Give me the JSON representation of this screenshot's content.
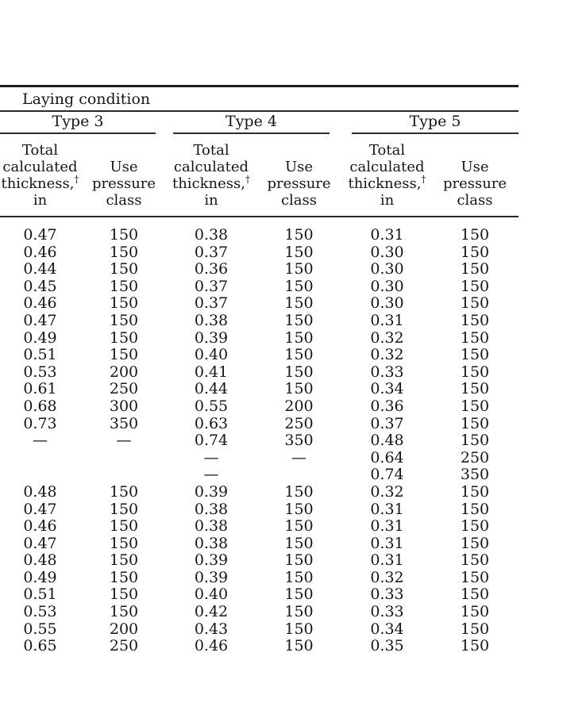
{
  "colors": {
    "background": "#ffffff",
    "text": "#161616",
    "rule": "#272727"
  },
  "table": {
    "laying_condition_label": "Laying condition",
    "types": [
      {
        "label": "Type 3"
      },
      {
        "label": "Type 4"
      },
      {
        "label": "Type 5"
      }
    ],
    "col_headers": {
      "thickness_line1": "Total",
      "thickness_line2": "calculated",
      "thickness_line3": "thickness,",
      "thickness_dagger": "†",
      "thickness_line4": "in",
      "pressure_line1": "Use",
      "pressure_line2": "pressure",
      "pressure_line3": "class"
    },
    "rows": [
      [
        "0.47",
        "150",
        "0.38",
        "150",
        "0.31",
        "150"
      ],
      [
        "0.46",
        "150",
        "0.37",
        "150",
        "0.30",
        "150"
      ],
      [
        "0.44",
        "150",
        "0.36",
        "150",
        "0.30",
        "150"
      ],
      [
        "0.45",
        "150",
        "0.37",
        "150",
        "0.30",
        "150"
      ],
      [
        "0.46",
        "150",
        "0.37",
        "150",
        "0.30",
        "150"
      ],
      [
        "0.47",
        "150",
        "0.38",
        "150",
        "0.31",
        "150"
      ],
      [
        "0.49",
        "150",
        "0.39",
        "150",
        "0.32",
        "150"
      ],
      [
        "0.51",
        "150",
        "0.40",
        "150",
        "0.32",
        "150"
      ],
      [
        "0.53",
        "200",
        "0.41",
        "150",
        "0.33",
        "150"
      ],
      [
        "0.61",
        "250",
        "0.44",
        "150",
        "0.34",
        "150"
      ],
      [
        "0.68",
        "300",
        "0.55",
        "200",
        "0.36",
        "150"
      ],
      [
        "0.73",
        "350",
        "0.63",
        "250",
        "0.37",
        "150"
      ],
      [
        "—",
        "—",
        "0.74",
        "350",
        "0.48",
        "150"
      ],
      [
        "",
        "",
        "—",
        "—",
        "0.64",
        "250"
      ],
      [
        "",
        "",
        "—",
        "",
        "0.74",
        "350"
      ],
      [
        "0.48",
        "150",
        "0.39",
        "150",
        "0.32",
        "150"
      ],
      [
        "0.47",
        "150",
        "0.38",
        "150",
        "0.31",
        "150"
      ],
      [
        "0.46",
        "150",
        "0.38",
        "150",
        "0.31",
        "150"
      ],
      [
        "0.47",
        "150",
        "0.38",
        "150",
        "0.31",
        "150"
      ],
      [
        "0.48",
        "150",
        "0.39",
        "150",
        "0.31",
        "150"
      ],
      [
        "0.49",
        "150",
        "0.39",
        "150",
        "0.32",
        "150"
      ],
      [
        "0.51",
        "150",
        "0.40",
        "150",
        "0.33",
        "150"
      ],
      [
        "0.53",
        "150",
        "0.42",
        "150",
        "0.33",
        "150"
      ],
      [
        "0.55",
        "200",
        "0.43",
        "150",
        "0.34",
        "150"
      ],
      [
        "0.65",
        "250",
        "0.46",
        "150",
        "0.35",
        "150"
      ]
    ]
  }
}
